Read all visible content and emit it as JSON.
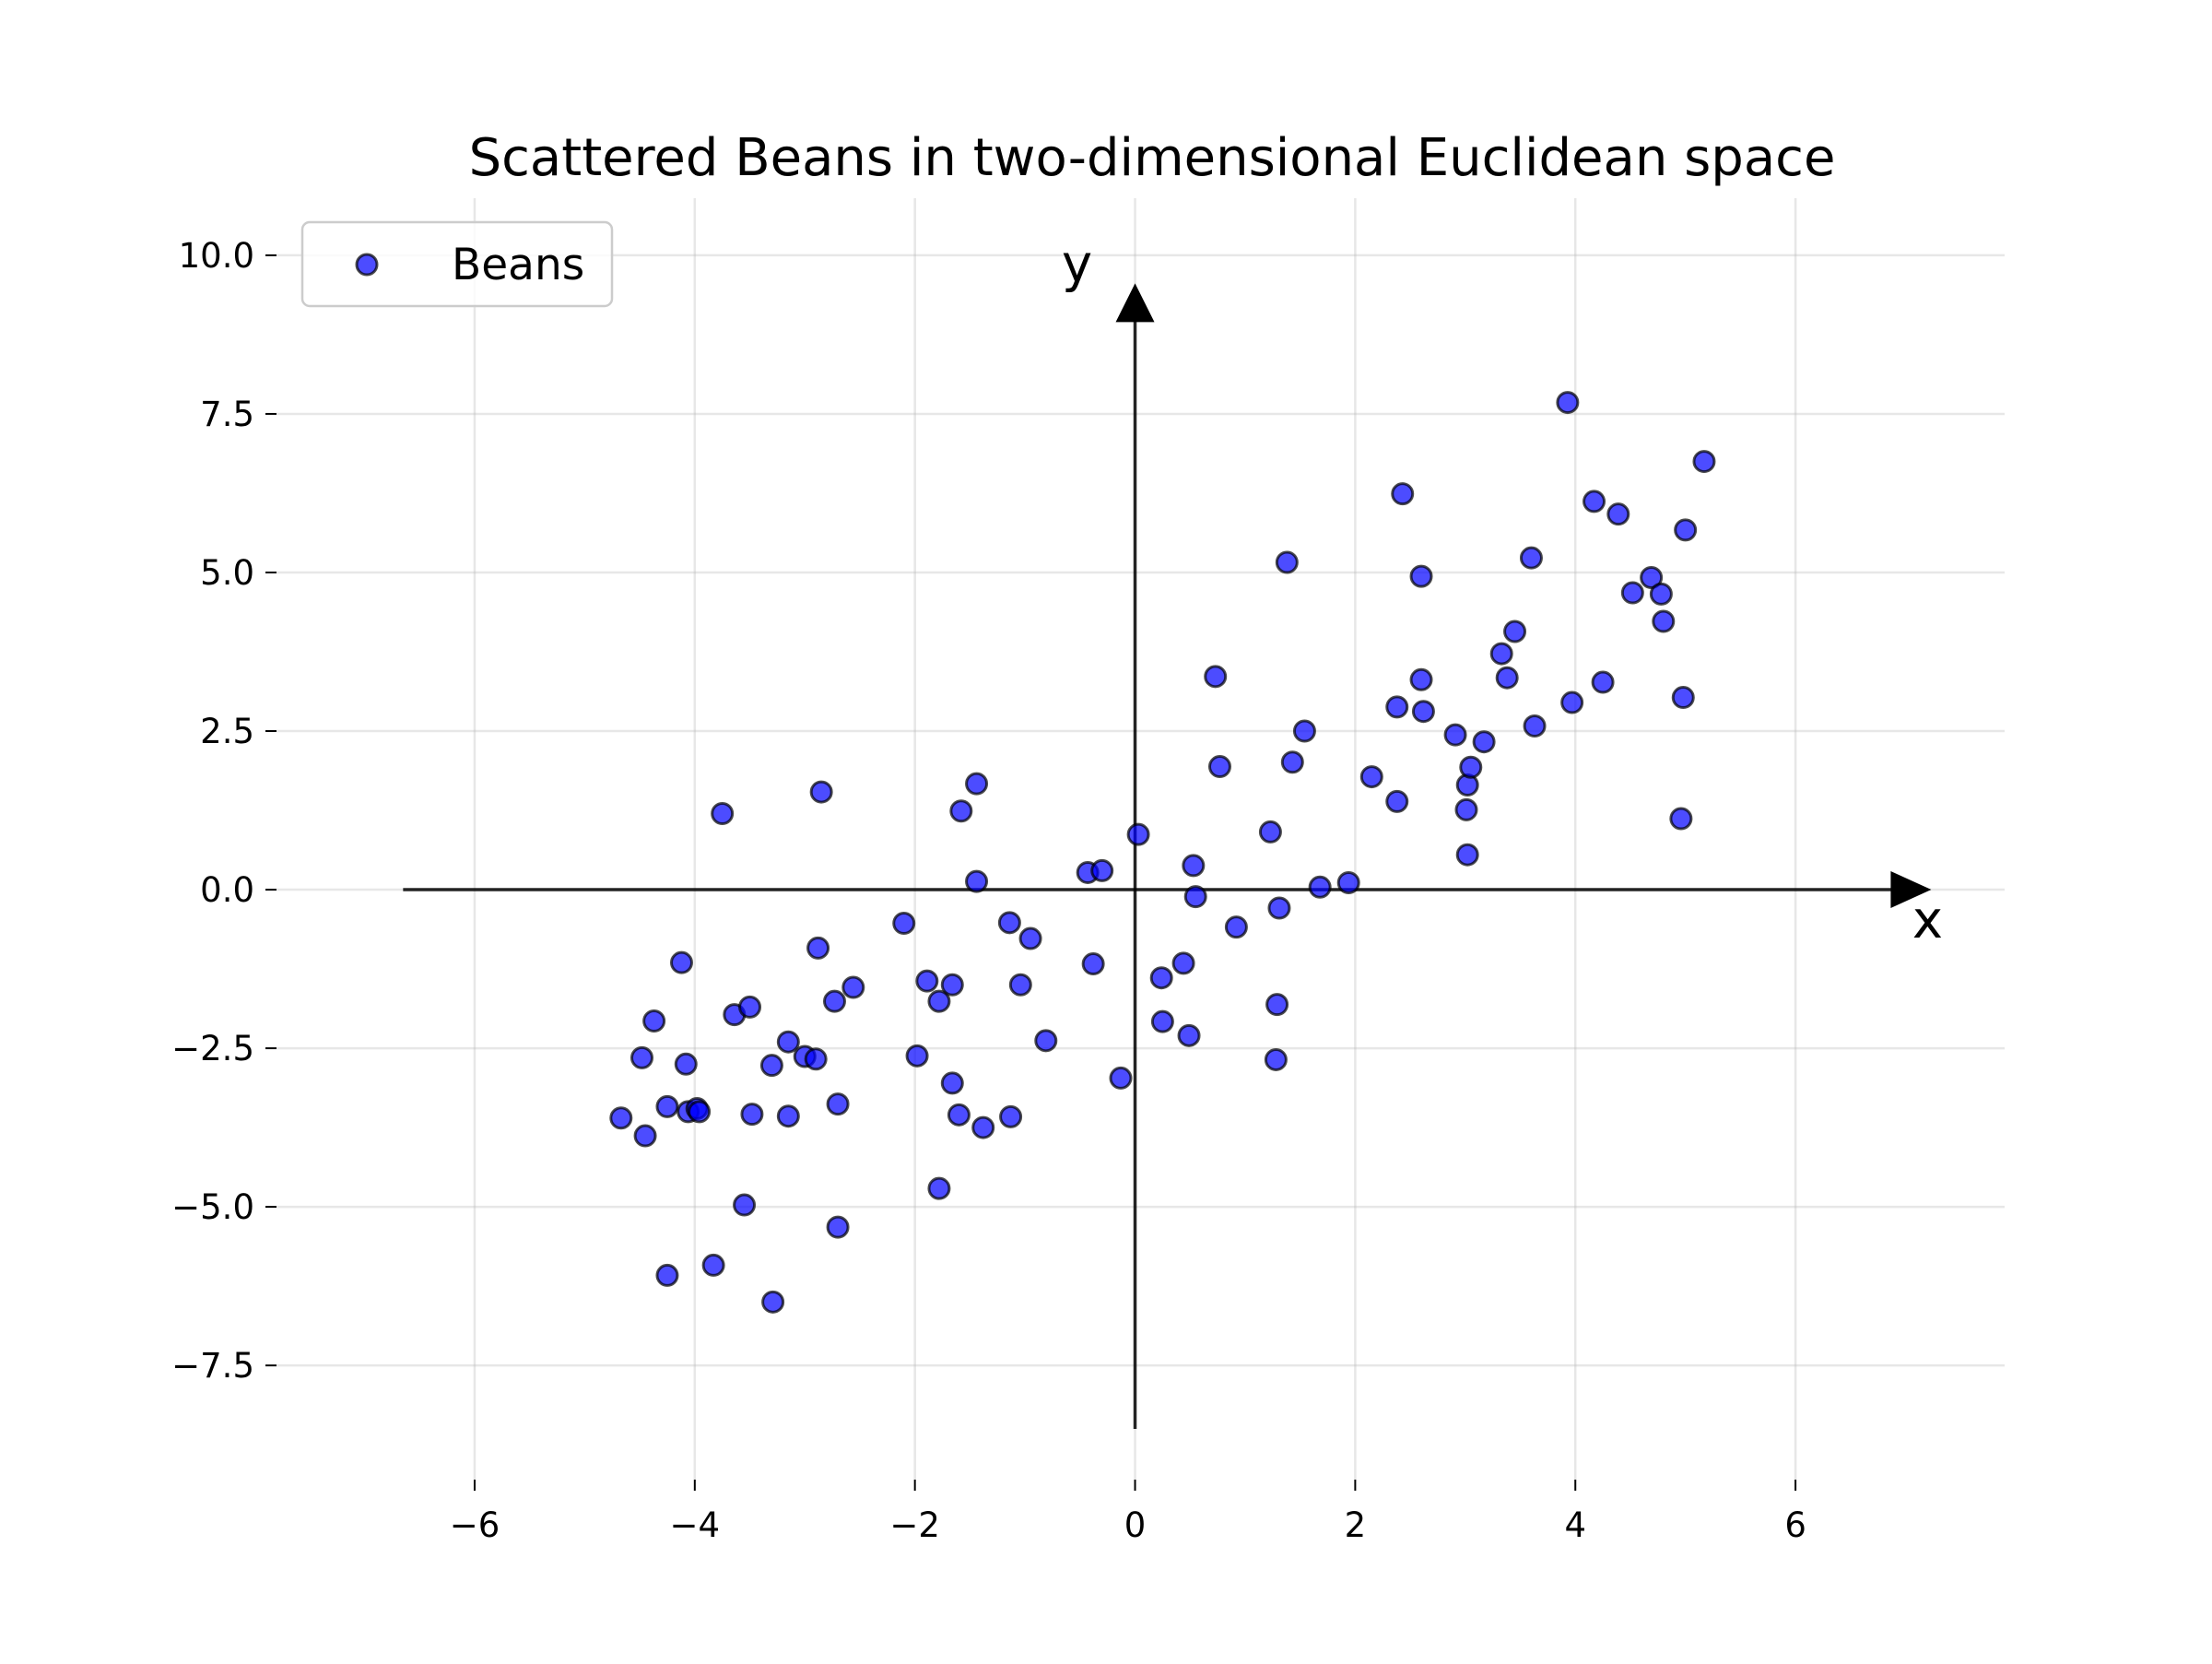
{
  "chart_data": {
    "type": "scatter",
    "title": "Scattered Beans in two-dimensional Euclidean space",
    "xlabel": "x",
    "ylabel": "y",
    "xlim": [
      -7.8,
      7.9
    ],
    "ylim": [
      -9.3,
      10.9
    ],
    "x_ticks": [
      {
        "value": -6,
        "label": "−6"
      },
      {
        "value": -4,
        "label": "−4"
      },
      {
        "value": -2,
        "label": "−2"
      },
      {
        "value": 0,
        "label": "0"
      },
      {
        "value": 2,
        "label": "2"
      },
      {
        "value": 4,
        "label": "4"
      },
      {
        "value": 6,
        "label": "6"
      }
    ],
    "y_ticks": [
      {
        "value": -7.5,
        "label": "−7.5"
      },
      {
        "value": -5.0,
        "label": "−5.0"
      },
      {
        "value": -2.5,
        "label": "−2.5"
      },
      {
        "value": 0.0,
        "label": "0.0"
      },
      {
        "value": 2.5,
        "label": "2.5"
      },
      {
        "value": 5.0,
        "label": "5.0"
      },
      {
        "value": 7.5,
        "label": "7.5"
      },
      {
        "value": 10.0,
        "label": "10.0"
      }
    ],
    "grid": true,
    "legend": {
      "position": "top-left",
      "entries": [
        "Beans"
      ]
    },
    "arrow_axes": {
      "x_range": [
        -6.65,
        7.2
      ],
      "y_range": [
        -8.5,
        9.5
      ]
    },
    "series": [
      {
        "name": "Beans",
        "color": "#0000ff",
        "edge_color": "#000000",
        "points": [
          [
            -4.67,
            -3.6
          ],
          [
            -4.45,
            -3.88
          ],
          [
            -4.48,
            -2.65
          ],
          [
            -4.37,
            -2.07
          ],
          [
            -4.25,
            -3.42
          ],
          [
            -4.25,
            -6.08
          ],
          [
            -4.12,
            -1.15
          ],
          [
            -4.08,
            -2.75
          ],
          [
            -4.06,
            -3.5
          ],
          [
            -3.98,
            -3.45
          ],
          [
            -3.96,
            -3.5
          ],
          [
            -3.83,
            -5.92
          ],
          [
            -3.75,
            1.2
          ],
          [
            -3.64,
            -1.97
          ],
          [
            -3.55,
            -4.97
          ],
          [
            -3.5,
            -1.85
          ],
          [
            -3.48,
            -3.54
          ],
          [
            -3.3,
            -2.77
          ],
          [
            -3.29,
            -6.5
          ],
          [
            -3.15,
            -2.4
          ],
          [
            -3.15,
            -3.57
          ],
          [
            -3.0,
            -2.63
          ],
          [
            -2.9,
            -2.67
          ],
          [
            -2.88,
            -0.92
          ],
          [
            -2.85,
            1.54
          ],
          [
            -2.73,
            -1.76
          ],
          [
            -2.7,
            -3.38
          ],
          [
            -2.7,
            -5.32
          ],
          [
            -2.56,
            -1.54
          ],
          [
            -2.1,
            -0.53
          ],
          [
            -1.98,
            -2.62
          ],
          [
            -1.89,
            -1.44
          ],
          [
            -1.78,
            -1.76
          ],
          [
            -1.78,
            -4.71
          ],
          [
            -1.66,
            -1.5
          ],
          [
            -1.66,
            -3.05
          ],
          [
            -1.6,
            -3.55
          ],
          [
            -1.58,
            1.24
          ],
          [
            -1.44,
            0.13
          ],
          [
            -1.44,
            1.67
          ],
          [
            -1.38,
            -3.75
          ],
          [
            -1.14,
            -0.52
          ],
          [
            -1.13,
            -3.58
          ],
          [
            -1.04,
            -1.5
          ],
          [
            -0.95,
            -0.77
          ],
          [
            -0.81,
            -2.38
          ],
          [
            -0.43,
            0.27
          ],
          [
            -0.38,
            -1.17
          ],
          [
            -0.3,
            0.3
          ],
          [
            -0.13,
            -2.97
          ],
          [
            0.03,
            0.87
          ],
          [
            0.24,
            -1.39
          ],
          [
            0.25,
            -2.08
          ],
          [
            0.44,
            -1.16
          ],
          [
            0.49,
            -2.3
          ],
          [
            0.53,
            0.38
          ],
          [
            0.55,
            -0.11
          ],
          [
            0.73,
            3.36
          ],
          [
            0.77,
            1.94
          ],
          [
            0.92,
            -0.59
          ],
          [
            1.23,
            0.91
          ],
          [
            1.28,
            -2.68
          ],
          [
            1.29,
            -1.81
          ],
          [
            1.31,
            -0.29
          ],
          [
            1.38,
            5.16
          ],
          [
            1.43,
            2.01
          ],
          [
            1.54,
            2.5
          ],
          [
            1.68,
            0.04
          ],
          [
            1.94,
            0.11
          ],
          [
            2.15,
            1.78
          ],
          [
            2.38,
            2.88
          ],
          [
            2.38,
            1.39
          ],
          [
            2.43,
            6.24
          ],
          [
            2.6,
            3.31
          ],
          [
            2.6,
            4.94
          ],
          [
            2.62,
            2.81
          ],
          [
            2.91,
            2.44
          ],
          [
            3.01,
            1.26
          ],
          [
            3.02,
            1.65
          ],
          [
            3.02,
            0.55
          ],
          [
            3.05,
            1.93
          ],
          [
            3.17,
            2.33
          ],
          [
            3.33,
            3.72
          ],
          [
            3.38,
            3.34
          ],
          [
            3.45,
            4.07
          ],
          [
            3.6,
            5.23
          ],
          [
            3.63,
            2.58
          ],
          [
            3.93,
            7.68
          ],
          [
            3.97,
            2.95
          ],
          [
            4.17,
            6.12
          ],
          [
            4.25,
            3.27
          ],
          [
            4.39,
            5.92
          ],
          [
            4.52,
            4.68
          ],
          [
            4.69,
            4.92
          ],
          [
            4.78,
            4.66
          ],
          [
            4.8,
            4.23
          ],
          [
            4.96,
            1.12
          ],
          [
            4.98,
            3.03
          ],
          [
            5.0,
            5.67
          ],
          [
            5.17,
            6.75
          ]
        ]
      }
    ]
  }
}
